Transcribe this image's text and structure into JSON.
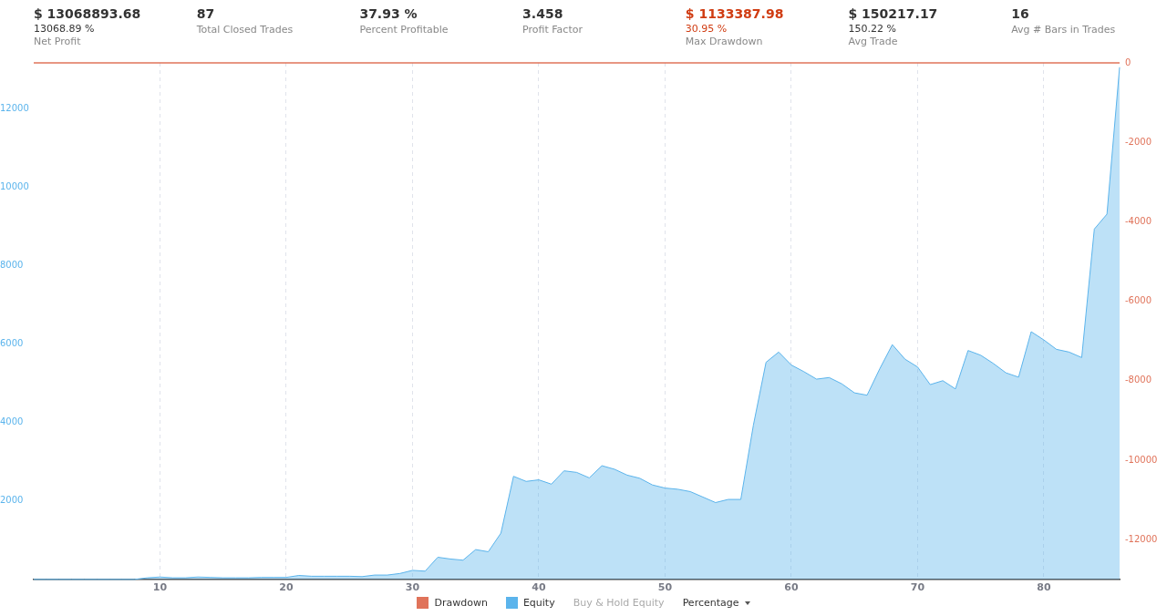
{
  "chart_data": {
    "type": "area",
    "x": [
      0,
      1,
      2,
      3,
      4,
      5,
      6,
      7,
      8,
      9,
      10,
      11,
      12,
      13,
      14,
      15,
      16,
      17,
      18,
      19,
      20,
      21,
      22,
      23,
      24,
      25,
      26,
      27,
      28,
      29,
      30,
      31,
      32,
      33,
      34,
      35,
      36,
      37,
      38,
      39,
      40,
      41,
      42,
      43,
      44,
      45,
      46,
      47,
      48,
      49,
      50,
      51,
      52,
      53,
      54,
      55,
      56,
      57,
      58,
      59,
      60,
      61,
      62,
      63,
      64,
      65,
      66,
      67,
      68,
      69,
      70,
      71,
      72,
      73,
      74,
      75,
      76,
      77,
      78,
      79,
      80,
      81,
      82,
      83,
      84,
      85,
      86
    ],
    "series": [
      {
        "name": "Drawdown",
        "type": "line",
        "axis": "y2",
        "color": "#e0735a",
        "values": [
          0,
          0,
          0,
          0,
          0,
          0,
          0,
          0,
          0,
          0,
          0,
          0,
          0,
          0,
          0,
          0,
          0,
          0,
          0,
          0,
          0,
          0,
          0,
          0,
          0,
          0,
          0,
          0,
          0,
          0,
          0,
          0,
          0,
          0,
          0,
          0,
          0,
          0,
          0,
          0,
          0,
          0,
          0,
          0,
          0,
          0,
          0,
          0,
          0,
          0,
          0,
          0,
          0,
          0,
          0,
          0,
          0,
          0,
          0,
          0,
          0,
          0,
          0,
          0,
          0,
          0,
          0,
          0,
          0,
          0,
          0,
          0,
          0,
          0,
          0,
          0,
          0,
          0,
          0,
          0,
          0,
          0,
          0,
          0,
          0,
          0,
          0
        ]
      },
      {
        "name": "Equity",
        "color": "#5bb4ec",
        "values": [
          0,
          0,
          0,
          0,
          0,
          0,
          0,
          0,
          0,
          40,
          60,
          40,
          40,
          60,
          50,
          40,
          40,
          40,
          50,
          50,
          50,
          100,
          80,
          80,
          80,
          80,
          70,
          110,
          110,
          150,
          230,
          210,
          565,
          520,
          490,
          760,
          705,
          1180,
          2630,
          2500,
          2540,
          2430,
          2770,
          2730,
          2590,
          2900,
          2810,
          2660,
          2580,
          2410,
          2330,
          2300,
          2240,
          2100,
          1960,
          2040,
          2040,
          3940,
          5540,
          5800,
          5470,
          5300,
          5110,
          5150,
          4990,
          4760,
          4700,
          5370,
          5990,
          5620,
          5420,
          4970,
          5070,
          4860,
          5840,
          5720,
          5510,
          5270,
          5160,
          6320,
          6110,
          5870,
          5800,
          5660,
          8940,
          9320,
          13069
        ]
      }
    ],
    "xlim": [
      0,
      86
    ],
    "xticks": [
      10,
      20,
      30,
      40,
      50,
      60,
      70,
      80
    ],
    "ylim": [
      0,
      13180
    ],
    "yticks": [
      2000,
      4000,
      6000,
      8000,
      10000,
      12000
    ],
    "y2lim": [
      -13000,
      0
    ],
    "y2ticks": [
      0,
      -2000,
      -4000,
      -6000,
      -8000,
      -10000,
      -12000
    ],
    "grid": "x",
    "legend": "bottom",
    "marker": "none",
    "annotations": [
      "$ 13068893.68\n13068.89 %\nNet Profit",
      "87\nTotal Closed Trades",
      "37.93 %\nPercent Profitable",
      "3.458\nProfit Factor",
      "$ 1133387.98\n30.95 %\nMax Drawdown",
      "$ 150217.17\n150.22 %\nAvg Trade",
      "16\nAvg # Bars in Trades",
      "Buy & Hold Equity",
      "Percentage"
    ]
  }
}
